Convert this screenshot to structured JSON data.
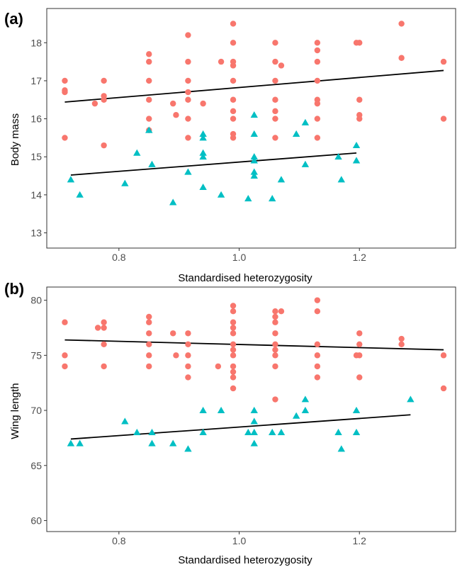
{
  "colors": {
    "group1": "#F8766D",
    "group2": "#00BFC4",
    "line": "#000000",
    "frame": "#333333",
    "tick_text": "#4d4d4d"
  },
  "chart_data": [
    {
      "panel_label": "(a)",
      "type": "scatter",
      "xlabel": "Standardised heterozygosity",
      "ylabel": "Body mass",
      "xlim": [
        0.68,
        1.36
      ],
      "ylim": [
        12.6,
        18.9
      ],
      "xticks": [
        0.8,
        1.0,
        1.2
      ],
      "xtick_labels": [
        "0.8",
        "1.0",
        "1.2"
      ],
      "yticks": [
        13,
        14,
        15,
        16,
        17,
        18
      ],
      "ytick_labels": [
        "13",
        "14",
        "15",
        "16",
        "17",
        "18"
      ],
      "grid": false,
      "series": [
        {
          "marker": "circle",
          "color": "#F8766D",
          "points": [
            [
              0.71,
              17.0
            ],
            [
              0.71,
              16.75
            ],
            [
              0.71,
              16.7
            ],
            [
              0.71,
              15.5
            ],
            [
              0.76,
              16.4
            ],
            [
              0.775,
              17.0
            ],
            [
              0.775,
              16.6
            ],
            [
              0.775,
              16.5
            ],
            [
              0.775,
              15.3
            ],
            [
              0.85,
              17.7
            ],
            [
              0.85,
              17.5
            ],
            [
              0.85,
              17.0
            ],
            [
              0.85,
              16.5
            ],
            [
              0.85,
              16.0
            ],
            [
              0.85,
              15.7
            ],
            [
              0.89,
              16.4
            ],
            [
              0.895,
              16.1
            ],
            [
              0.915,
              18.2
            ],
            [
              0.915,
              17.5
            ],
            [
              0.915,
              17.0
            ],
            [
              0.915,
              16.7
            ],
            [
              0.915,
              16.5
            ],
            [
              0.915,
              16.0
            ],
            [
              0.915,
              15.5
            ],
            [
              0.94,
              16.4
            ],
            [
              0.97,
              17.5
            ],
            [
              0.99,
              18.5
            ],
            [
              0.99,
              18.0
            ],
            [
              0.99,
              17.5
            ],
            [
              0.99,
              17.4
            ],
            [
              0.99,
              17.0
            ],
            [
              0.99,
              16.5
            ],
            [
              0.99,
              16.2
            ],
            [
              0.99,
              16.0
            ],
            [
              0.99,
              15.6
            ],
            [
              0.99,
              15.5
            ],
            [
              1.06,
              18.0
            ],
            [
              1.06,
              17.5
            ],
            [
              1.06,
              17.0
            ],
            [
              1.06,
              16.5
            ],
            [
              1.06,
              16.2
            ],
            [
              1.06,
              16.0
            ],
            [
              1.06,
              15.5
            ],
            [
              1.07,
              17.4
            ],
            [
              1.13,
              18.0
            ],
            [
              1.13,
              17.8
            ],
            [
              1.13,
              17.5
            ],
            [
              1.13,
              17.0
            ],
            [
              1.13,
              16.5
            ],
            [
              1.13,
              16.4
            ],
            [
              1.13,
              16.0
            ],
            [
              1.13,
              15.5
            ],
            [
              1.195,
              18.0
            ],
            [
              1.2,
              18.0
            ],
            [
              1.2,
              16.5
            ],
            [
              1.2,
              16.1
            ],
            [
              1.2,
              16.0
            ],
            [
              1.27,
              18.5
            ],
            [
              1.27,
              17.6
            ],
            [
              1.34,
              17.5
            ],
            [
              1.34,
              16.0
            ]
          ]
        },
        {
          "marker": "triangle",
          "color": "#00BFC4",
          "points": [
            [
              0.72,
              14.4
            ],
            [
              0.735,
              14.0
            ],
            [
              0.81,
              14.3
            ],
            [
              0.83,
              15.1
            ],
            [
              0.85,
              15.7
            ],
            [
              0.855,
              14.8
            ],
            [
              0.89,
              13.8
            ],
            [
              0.915,
              14.6
            ],
            [
              0.94,
              15.6
            ],
            [
              0.94,
              15.5
            ],
            [
              0.94,
              15.1
            ],
            [
              0.94,
              15.0
            ],
            [
              0.94,
              14.2
            ],
            [
              0.97,
              14.0
            ],
            [
              1.015,
              13.9
            ],
            [
              1.025,
              16.1
            ],
            [
              1.025,
              15.6
            ],
            [
              1.025,
              15.0
            ],
            [
              1.025,
              14.9
            ],
            [
              1.025,
              14.6
            ],
            [
              1.025,
              14.5
            ],
            [
              1.055,
              13.9
            ],
            [
              1.07,
              14.4
            ],
            [
              1.095,
              15.6
            ],
            [
              1.11,
              15.9
            ],
            [
              1.11,
              14.8
            ],
            [
              1.165,
              15.0
            ],
            [
              1.17,
              14.4
            ],
            [
              1.195,
              15.3
            ],
            [
              1.195,
              14.9
            ]
          ]
        }
      ],
      "fit_lines": [
        {
          "x": [
            0.71,
            1.34
          ],
          "y": [
            16.44,
            17.27
          ]
        },
        {
          "x": [
            0.72,
            1.195
          ],
          "y": [
            14.52,
            15.1
          ]
        }
      ]
    },
    {
      "panel_label": "(b)",
      "type": "scatter",
      "xlabel": "Standardised heterozygosity",
      "ylabel": "Wing length",
      "xlim": [
        0.68,
        1.36
      ],
      "ylim": [
        59.0,
        81.2
      ],
      "xticks": [
        0.8,
        1.0,
        1.2
      ],
      "xtick_labels": [
        "0.8",
        "1.0",
        "1.2"
      ],
      "yticks": [
        60,
        65,
        70,
        75,
        80
      ],
      "ytick_labels": [
        "60",
        "65",
        "70",
        "75",
        "80"
      ],
      "grid": false,
      "series": [
        {
          "marker": "circle",
          "color": "#F8766D",
          "points": [
            [
              0.71,
              78.0
            ],
            [
              0.71,
              75.0
            ],
            [
              0.71,
              74.0
            ],
            [
              0.765,
              77.5
            ],
            [
              0.775,
              78.0
            ],
            [
              0.775,
              77.5
            ],
            [
              0.775,
              76.0
            ],
            [
              0.775,
              74.0
            ],
            [
              0.85,
              78.5
            ],
            [
              0.85,
              78.0
            ],
            [
              0.85,
              77.0
            ],
            [
              0.85,
              76.0
            ],
            [
              0.85,
              75.0
            ],
            [
              0.85,
              74.0
            ],
            [
              0.89,
              77.0
            ],
            [
              0.895,
              75.0
            ],
            [
              0.915,
              77.0
            ],
            [
              0.915,
              76.0
            ],
            [
              0.915,
              75.0
            ],
            [
              0.915,
              74.0
            ],
            [
              0.915,
              73.0
            ],
            [
              0.965,
              74.0
            ],
            [
              0.99,
              79.5
            ],
            [
              0.99,
              79.0
            ],
            [
              0.99,
              78.0
            ],
            [
              0.99,
              77.5
            ],
            [
              0.99,
              77.0
            ],
            [
              0.99,
              76.0
            ],
            [
              0.99,
              75.5
            ],
            [
              0.99,
              75.0
            ],
            [
              0.99,
              74.0
            ],
            [
              0.99,
              73.5
            ],
            [
              0.99,
              73.0
            ],
            [
              0.99,
              72.0
            ],
            [
              1.06,
              79.0
            ],
            [
              1.06,
              78.5
            ],
            [
              1.06,
              78.0
            ],
            [
              1.06,
              77.0
            ],
            [
              1.06,
              76.0
            ],
            [
              1.06,
              75.5
            ],
            [
              1.06,
              75.0
            ],
            [
              1.06,
              74.0
            ],
            [
              1.06,
              71.0
            ],
            [
              1.07,
              79.0
            ],
            [
              1.13,
              80.0
            ],
            [
              1.13,
              79.0
            ],
            [
              1.13,
              76.0
            ],
            [
              1.13,
              75.0
            ],
            [
              1.13,
              74.0
            ],
            [
              1.13,
              73.0
            ],
            [
              1.195,
              75.0
            ],
            [
              1.2,
              77.0
            ],
            [
              1.2,
              76.0
            ],
            [
              1.2,
              75.0
            ],
            [
              1.2,
              73.0
            ],
            [
              1.27,
              76.5
            ],
            [
              1.27,
              76.0
            ],
            [
              1.34,
              75.0
            ],
            [
              1.34,
              72.0
            ]
          ]
        },
        {
          "marker": "triangle",
          "color": "#00BFC4",
          "points": [
            [
              0.72,
              67.0
            ],
            [
              0.735,
              67.0
            ],
            [
              0.81,
              69.0
            ],
            [
              0.83,
              68.0
            ],
            [
              0.855,
              68.0
            ],
            [
              0.855,
              67.0
            ],
            [
              0.89,
              67.0
            ],
            [
              0.915,
              66.5
            ],
            [
              0.94,
              70.0
            ],
            [
              0.94,
              68.0
            ],
            [
              0.97,
              70.0
            ],
            [
              1.015,
              68.0
            ],
            [
              1.025,
              70.0
            ],
            [
              1.025,
              69.0
            ],
            [
              1.025,
              68.0
            ],
            [
              1.025,
              67.0
            ],
            [
              1.055,
              68.0
            ],
            [
              1.07,
              68.0
            ],
            [
              1.095,
              69.5
            ],
            [
              1.11,
              71.0
            ],
            [
              1.11,
              70.0
            ],
            [
              1.165,
              68.0
            ],
            [
              1.17,
              66.5
            ],
            [
              1.195,
              70.0
            ],
            [
              1.195,
              68.0
            ],
            [
              1.285,
              71.0
            ]
          ]
        }
      ],
      "fit_lines": [
        {
          "x": [
            0.71,
            1.34
          ],
          "y": [
            76.4,
            75.5
          ]
        },
        {
          "x": [
            0.72,
            1.285
          ],
          "y": [
            67.4,
            69.6
          ]
        }
      ]
    }
  ]
}
